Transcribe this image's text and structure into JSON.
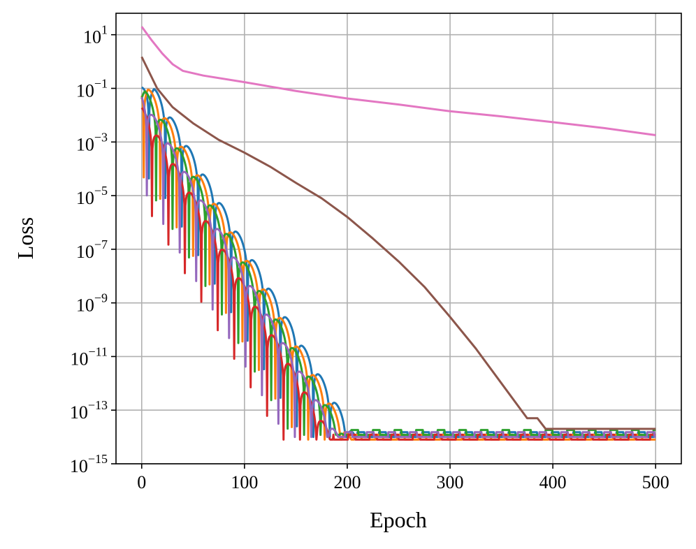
{
  "chart_data": {
    "type": "line",
    "title": "",
    "xlabel": "Epoch",
    "ylabel": "Loss",
    "xlim": [
      -25,
      525
    ],
    "ylim_log10": [
      -15,
      1.8
    ],
    "yscale": "log",
    "grid": true,
    "legend": "none",
    "x_ticks": [
      {
        "value": 0,
        "label": "0"
      },
      {
        "value": 100,
        "label": "100"
      },
      {
        "value": 200,
        "label": "200"
      },
      {
        "value": 300,
        "label": "300"
      },
      {
        "value": 400,
        "label": "400"
      },
      {
        "value": 500,
        "label": "500"
      }
    ],
    "y_ticks": [
      {
        "exp": 1,
        "base": "10",
        "sup": "1"
      },
      {
        "exp": -1,
        "base": "10",
        "sup": "−1"
      },
      {
        "exp": -3,
        "base": "10",
        "sup": "−3"
      },
      {
        "exp": -5,
        "base": "10",
        "sup": "−5"
      },
      {
        "exp": -7,
        "base": "10",
        "sup": "−7"
      },
      {
        "exp": -9,
        "base": "10",
        "sup": "−9"
      },
      {
        "exp": -11,
        "base": "10",
        "sup": "−11"
      },
      {
        "exp": -13,
        "base": "10",
        "sup": "−13"
      },
      {
        "exp": -15,
        "base": "10",
        "sup": "−15"
      }
    ],
    "series": [
      {
        "color": "#1f77b4",
        "start": 0.11,
        "plateau_epoch": 12,
        "rate": 0.0665,
        "period": 16,
        "phase": 1,
        "floor": 1e-14,
        "floor_start": 300
      },
      {
        "color": "#ff7f0e",
        "start": 0.12,
        "plateau_epoch": 6,
        "rate": 0.0665,
        "period": 16,
        "phase": 6,
        "floor": 8e-15,
        "floor_start": 290
      },
      {
        "color": "#2ca02c",
        "start": 0.09,
        "plateau_epoch": 3,
        "rate": 0.0665,
        "period": 16,
        "phase": 10,
        "floor": 1.2e-14,
        "floor_start": 285
      },
      {
        "color": "#d62728",
        "start": 0.02,
        "plateau_epoch": 0,
        "rate": 0.0665,
        "period": 16,
        "phase": 14,
        "floor": 8e-15,
        "floor_start": 280
      },
      {
        "color": "#9467bd",
        "start": 0.055,
        "plateau_epoch": 0,
        "rate": 0.0665,
        "period": 16,
        "phase": 3,
        "floor": 1e-14,
        "floor_start": 270
      },
      {
        "color": "#8c564b",
        "points": [
          [
            0,
            1.5
          ],
          [
            15,
            0.1
          ],
          [
            30,
            0.02
          ],
          [
            50,
            0.005
          ],
          [
            75,
            0.0012
          ],
          [
            100,
            0.0004
          ],
          [
            125,
            0.00012
          ],
          [
            150,
            3e-05
          ],
          [
            175,
            8e-06
          ],
          [
            200,
            1.6e-06
          ],
          [
            225,
            2.5e-07
          ],
          [
            250,
            3.5e-08
          ],
          [
            275,
            4e-09
          ],
          [
            300,
            3e-10
          ],
          [
            325,
            2e-11
          ],
          [
            350,
            1e-12
          ],
          [
            375,
            5e-14
          ],
          [
            385,
            5e-14
          ],
          [
            393,
            2e-14
          ],
          [
            500,
            2e-14
          ]
        ]
      },
      {
        "color": "#e377c2",
        "points": [
          [
            0,
            20
          ],
          [
            10,
            6
          ],
          [
            20,
            2
          ],
          [
            30,
            0.8
          ],
          [
            40,
            0.45
          ],
          [
            60,
            0.3
          ],
          [
            100,
            0.17
          ],
          [
            150,
            0.08
          ],
          [
            200,
            0.042
          ],
          [
            250,
            0.025
          ],
          [
            300,
            0.014
          ],
          [
            350,
            0.009
          ],
          [
            400,
            0.0055
          ],
          [
            450,
            0.0033
          ],
          [
            500,
            0.0018
          ]
        ]
      }
    ]
  }
}
